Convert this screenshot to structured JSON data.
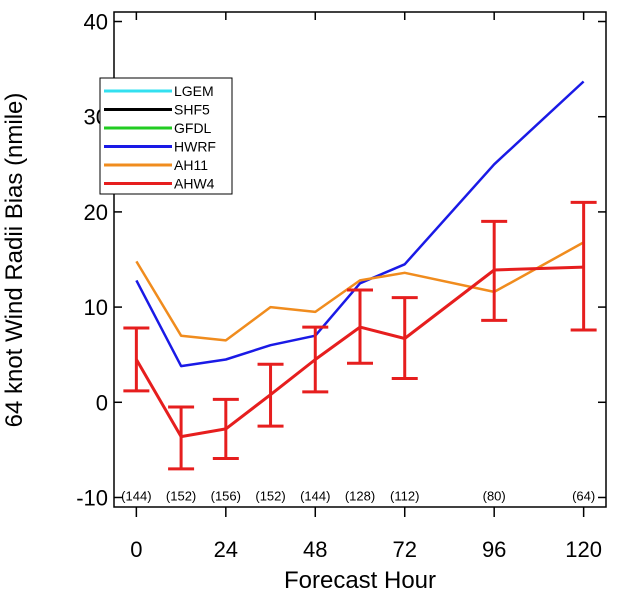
{
  "chart_data": {
    "type": "line",
    "title": "",
    "xlabel": "Forecast Hour",
    "ylabel": "64 knot Wind Radii Bias (nmile)",
    "xlim": [
      -6,
      126
    ],
    "ylim": [
      -11,
      41
    ],
    "xticks": [
      0,
      24,
      48,
      72,
      96,
      120
    ],
    "yticks": [
      -10,
      0,
      10,
      20,
      30,
      40
    ],
    "legend_position": "upper-left",
    "series": [
      {
        "name": "LGEM",
        "color": "#33e0f0",
        "x": [],
        "y": []
      },
      {
        "name": "SHF5",
        "color": "#000000",
        "x": [],
        "y": []
      },
      {
        "name": "GFDL",
        "color": "#22cc22",
        "x": [],
        "y": []
      },
      {
        "name": "HWRF",
        "color": "#1a1ae6",
        "x": [
          0,
          12,
          24,
          36,
          48,
          60,
          72,
          96,
          120
        ],
        "y": [
          12.8,
          3.8,
          4.5,
          6.0,
          7.0,
          12.5,
          14.5,
          25.0,
          33.7
        ]
      },
      {
        "name": "AH11",
        "color": "#f08c1e",
        "x": [
          0,
          12,
          24,
          36,
          48,
          60,
          72,
          96,
          120
        ],
        "y": [
          14.8,
          7.0,
          6.5,
          10.0,
          9.5,
          12.8,
          13.6,
          11.6,
          16.8
        ]
      },
      {
        "name": "AHW4",
        "color": "#e61e1e",
        "x": [
          0,
          12,
          24,
          36,
          48,
          60,
          72,
          96,
          120
        ],
        "y": [
          4.5,
          -3.6,
          -2.8,
          0.8,
          4.5,
          7.9,
          6.7,
          13.9,
          14.2
        ],
        "error_low": [
          1.2,
          -7.0,
          -5.9,
          -2.5,
          1.1,
          4.1,
          2.5,
          8.6,
          7.6
        ],
        "error_high": [
          7.8,
          -0.5,
          0.3,
          4.0,
          7.9,
          11.8,
          11.0,
          19.0,
          21.0
        ]
      }
    ],
    "sample_counts": [
      {
        "x": 0,
        "label": "(144)"
      },
      {
        "x": 12,
        "label": "(152)"
      },
      {
        "x": 24,
        "label": "(156)"
      },
      {
        "x": 36,
        "label": "(152)"
      },
      {
        "x": 48,
        "label": "(144)"
      },
      {
        "x": 60,
        "label": "(128)"
      },
      {
        "x": 72,
        "label": "(112)"
      },
      {
        "x": 96,
        "label": "(80)"
      },
      {
        "x": 120,
        "label": "(64)"
      }
    ],
    "count_label_y": -10.3
  }
}
